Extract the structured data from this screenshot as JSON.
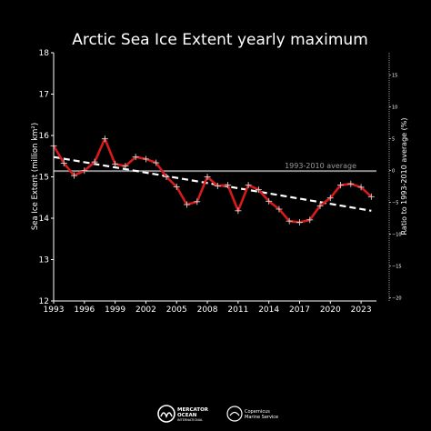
{
  "chart_data": {
    "type": "line",
    "title": "Arctic Sea Ice Extent yearly maximum",
    "ylabel": "Sea Ice Extent (million km²)",
    "y2label": "Ratio to 1993-2010 average (%)",
    "xlim": [
      1993,
      2024.5
    ],
    "ylim": [
      12,
      18
    ],
    "y2lim": [
      -20.5,
      18.5
    ],
    "x_ticks": [
      "1993",
      "1996",
      "1999",
      "2002",
      "2005",
      "2008",
      "2011",
      "2014",
      "2017",
      "2020",
      "2023"
    ],
    "y_ticks": [
      "12",
      "13",
      "14",
      "15",
      "16",
      "17",
      "18"
    ],
    "y2_ticks": [
      "15",
      "10",
      "5",
      "0",
      "−5",
      "−10",
      "−15",
      "−20"
    ],
    "series": [
      {
        "x": [
          1993,
          1994,
          1995,
          1996,
          1997,
          1998,
          1999,
          2000,
          2001,
          2002,
          2003,
          2004,
          2005,
          2006,
          2007,
          2008,
          2009,
          2010,
          2011,
          2012,
          2013,
          2014,
          2015,
          2016,
          2017,
          2018,
          2019,
          2020,
          2021,
          2022,
          2023,
          2024
        ],
        "values": [
          15.75,
          15.33,
          15.03,
          15.15,
          15.36,
          15.92,
          15.31,
          15.26,
          15.48,
          15.43,
          15.34,
          15.0,
          14.76,
          14.33,
          14.4,
          15.0,
          14.78,
          14.8,
          14.18,
          14.8,
          14.69,
          14.41,
          14.22,
          13.93,
          13.9,
          13.96,
          14.3,
          14.49,
          14.8,
          14.83,
          14.75,
          14.52
        ],
        "color": "#d81a1a"
      }
    ],
    "trend": {
      "x": [
        1993,
        2024
      ],
      "values": [
        15.48,
        14.18
      ],
      "style": "dashed",
      "color": "#ffffff"
    },
    "average": {
      "label": "1993-2010 average",
      "value": 15.14,
      "color": "#8a8a8a"
    }
  },
  "logos": {
    "mercator": {
      "line1": "MERCATOR",
      "line2": "OCEAN",
      "line3": "INTERNATIONAL"
    },
    "copernicus": {
      "line1": "Copernicus",
      "line2": "Marine Service"
    }
  }
}
